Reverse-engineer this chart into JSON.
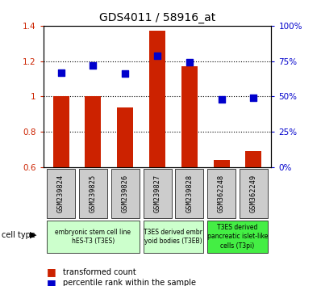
{
  "title": "GDS4011 / 58916_at",
  "samples": [
    "GSM239824",
    "GSM239825",
    "GSM239826",
    "GSM239827",
    "GSM239828",
    "GSM362248",
    "GSM362249"
  ],
  "transformed_count": [
    1.0,
    1.0,
    0.94,
    1.37,
    1.17,
    0.64,
    0.69
  ],
  "percentile_rank": [
    0.67,
    0.72,
    0.66,
    0.79,
    0.74,
    0.48,
    0.49
  ],
  "ylim_left": [
    0.6,
    1.4
  ],
  "ylim_right": [
    0.0,
    1.0
  ],
  "yticks_left": [
    0.6,
    0.8,
    1.0,
    1.2,
    1.4
  ],
  "ytick_labels_left": [
    "0.6",
    "0.8",
    "1",
    "1.2",
    "1.4"
  ],
  "yticks_right": [
    0.0,
    0.25,
    0.5,
    0.75,
    1.0
  ],
  "ytick_labels_right": [
    "0%",
    "25%",
    "50%",
    "75%",
    "100%"
  ],
  "bar_color": "#cc2200",
  "dot_color": "#0000cc",
  "bar_width": 0.5,
  "grid_yticks": [
    0.8,
    1.0,
    1.2
  ],
  "tick_bg_color": "#cccccc",
  "legend_items": [
    "transformed count",
    "percentile rank within the sample"
  ],
  "cell_type_label": "cell type",
  "group_defs": [
    {
      "indices": [
        0,
        1,
        2
      ],
      "label": "embryonic stem cell line\nhES-T3 (T3ES)",
      "color": "#ccffcc"
    },
    {
      "indices": [
        3,
        4
      ],
      "label": "T3ES derived embr\nyoid bodies (T3EB)",
      "color": "#ccffcc"
    },
    {
      "indices": [
        5,
        6
      ],
      "label": "T3ES derived\npancreatic islet-like\ncells (T3pi)",
      "color": "#44ee44"
    }
  ]
}
